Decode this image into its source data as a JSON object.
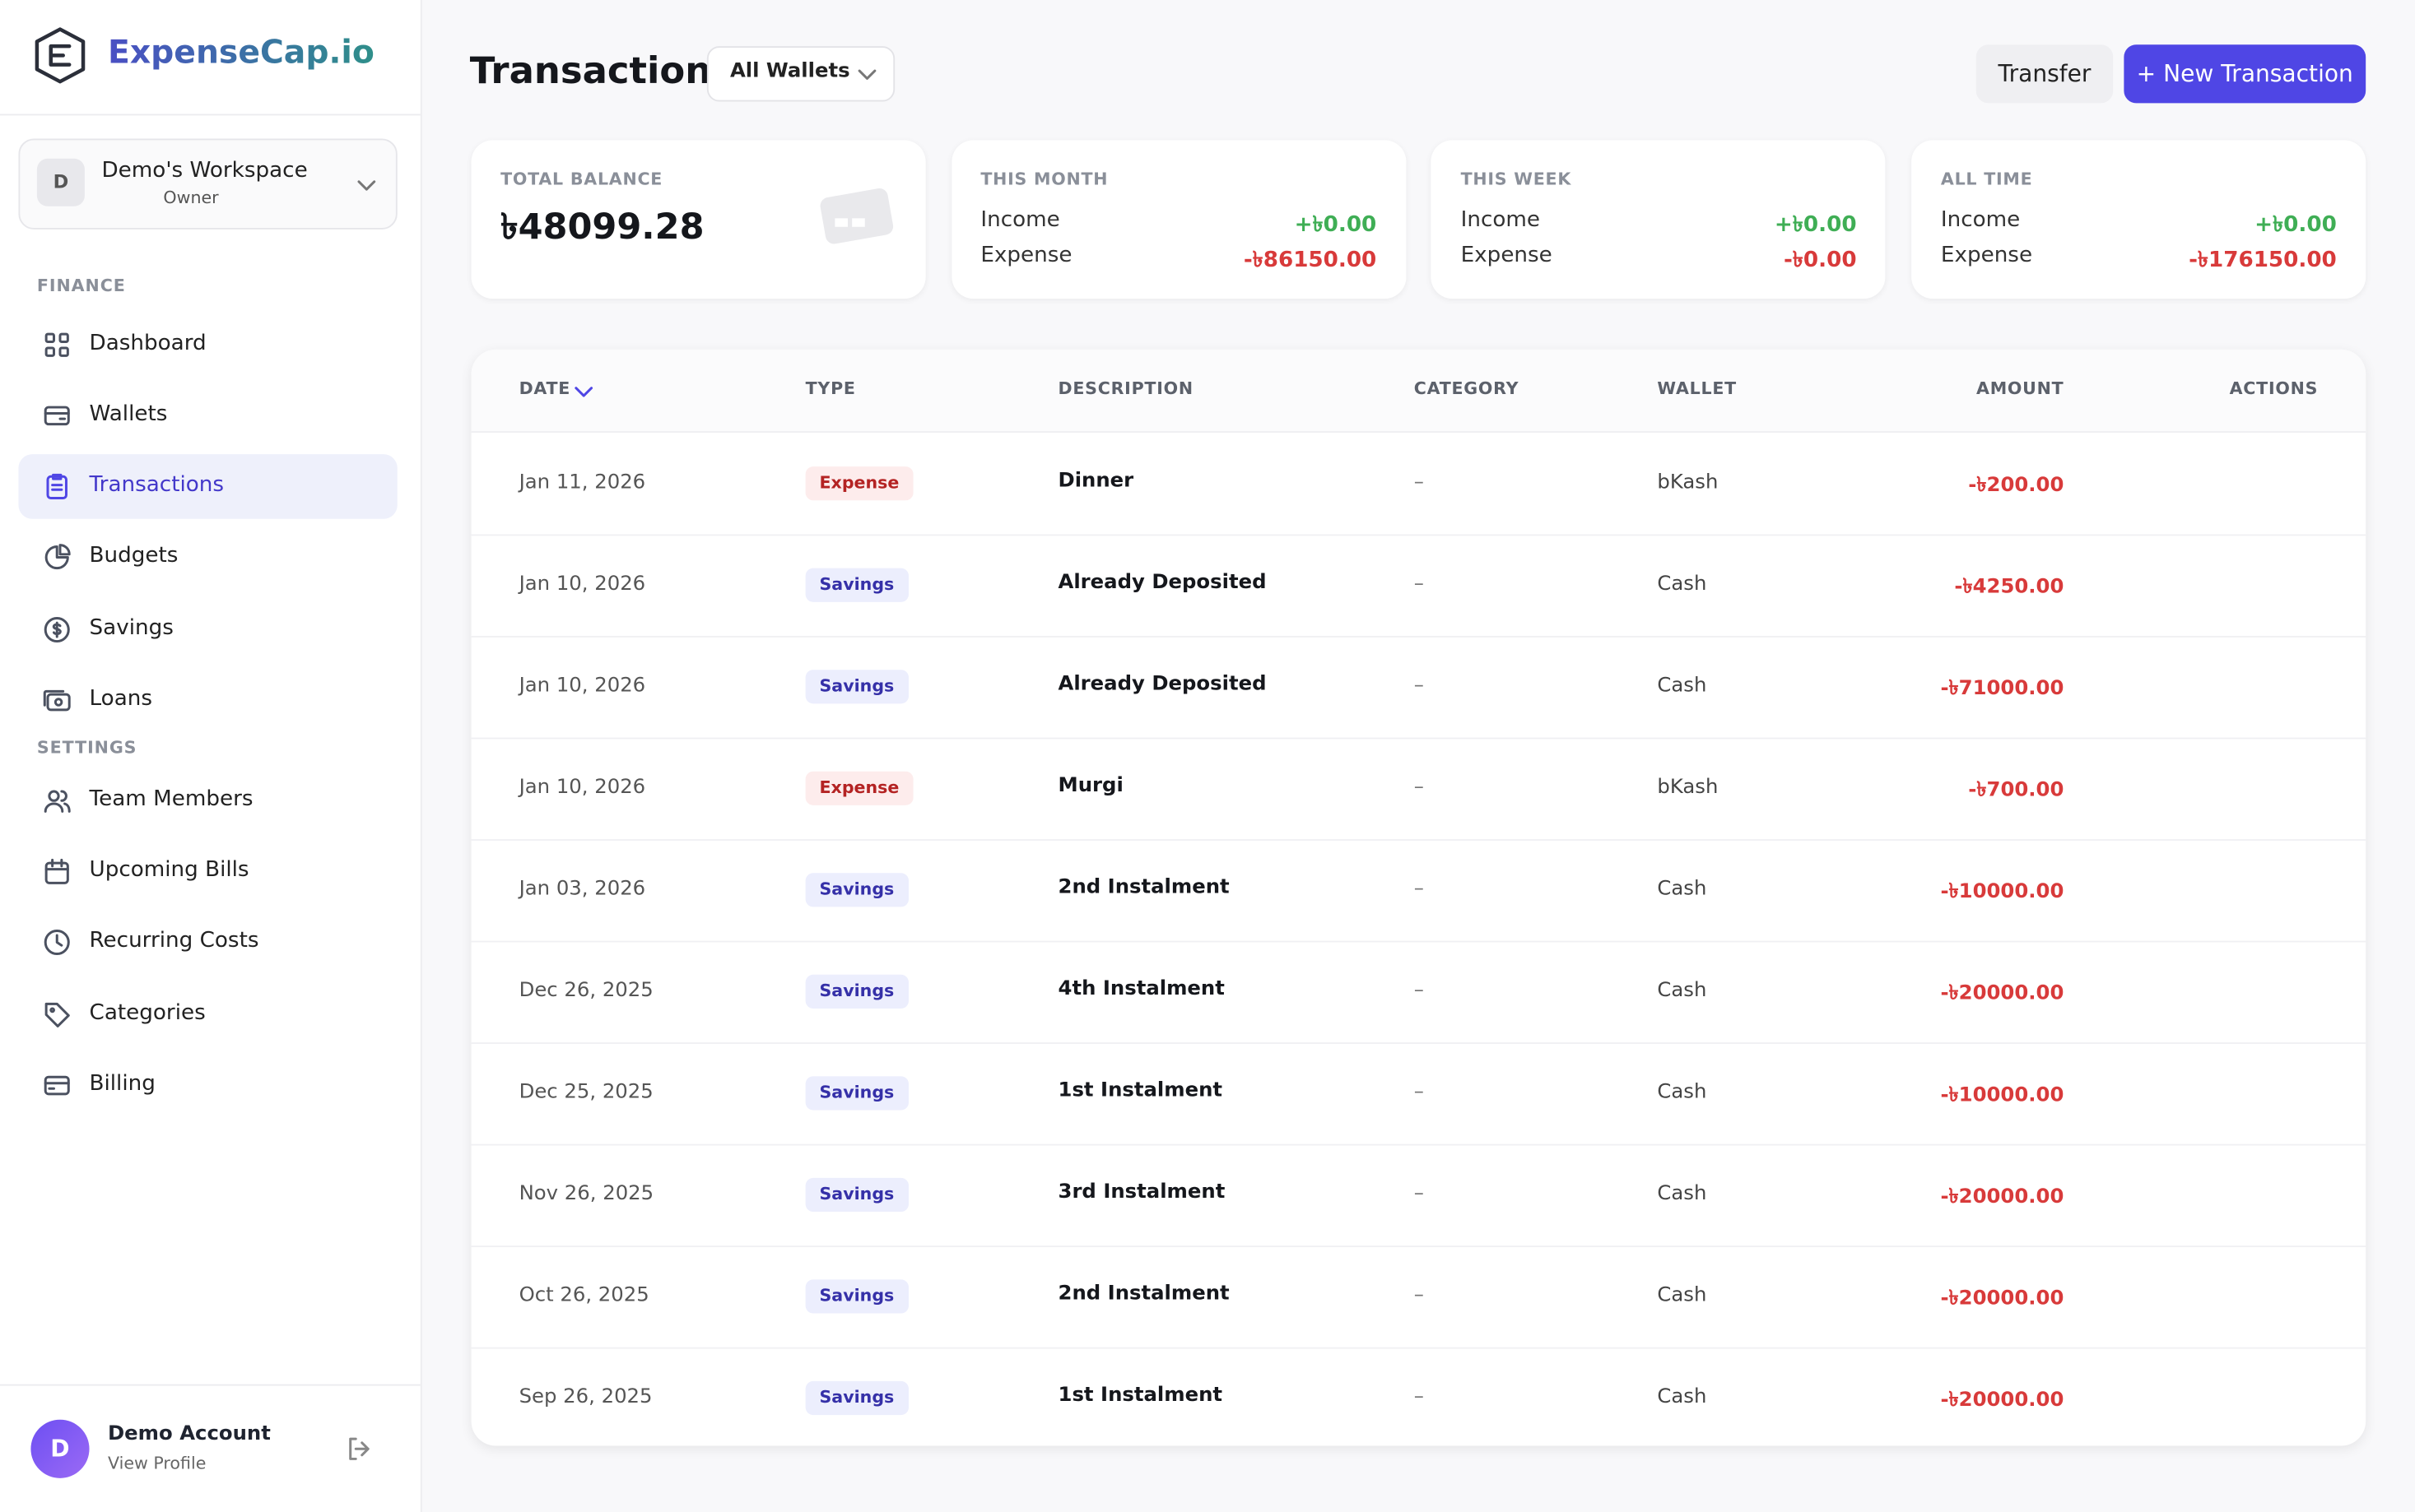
{
  "sidebar": {
    "logo": "ExpenseCap.io",
    "workspace": {
      "initial": "D",
      "name": "Demo's Workspace",
      "role": "Owner"
    },
    "sections": [
      {
        "title": "FINANCE",
        "items": [
          "Dashboard",
          "Wallets",
          "Transactions",
          "Budgets",
          "Savings",
          "Loans"
        ]
      },
      {
        "title": "SETTINGS",
        "items": [
          "Team Members",
          "Upcoming Bills",
          "Recurring Costs",
          "Categories",
          "Billing"
        ]
      }
    ],
    "account": {
      "initial": "D",
      "name": "Demo Account",
      "link": "View Profile"
    }
  },
  "header": {
    "title": "Transactions",
    "wallet_filter": "All Wallets",
    "transfer": "Transfer",
    "new": "+ New Transaction"
  },
  "cards": [
    {
      "title": "TOTAL BALANCE",
      "value": "৳48099.28"
    },
    {
      "title": "THIS MONTH",
      "income_label": "Income",
      "income": "+৳0.00",
      "expense_label": "Expense",
      "expense": "-৳86150.00"
    },
    {
      "title": "THIS WEEK",
      "income_label": "Income",
      "income": "+৳0.00",
      "expense_label": "Expense",
      "expense": "-৳0.00"
    },
    {
      "title": "ALL TIME",
      "income_label": "Income",
      "income": "+৳0.00",
      "expense_label": "Expense",
      "expense": "-৳176150.00"
    }
  ],
  "table": {
    "columns": [
      "DATE",
      "TYPE",
      "DESCRIPTION",
      "CATEGORY",
      "WALLET",
      "AMOUNT",
      "ACTIONS"
    ],
    "rows": [
      [
        "Jan 11, 2026",
        "Expense",
        "Dinner",
        "–",
        "bKash",
        "-৳200.00"
      ],
      [
        "Jan 10, 2026",
        "Savings",
        "Already Deposited",
        "–",
        "Cash",
        "-৳4250.00"
      ],
      [
        "Jan 10, 2026",
        "Savings",
        "Already Deposited",
        "–",
        "Cash",
        "-৳71000.00"
      ],
      [
        "Jan 10, 2026",
        "Expense",
        "Murgi",
        "–",
        "bKash",
        "-৳700.00"
      ],
      [
        "Jan 03, 2026",
        "Savings",
        "2nd Instalment",
        "–",
        "Cash",
        "-৳10000.00"
      ],
      [
        "Dec 26, 2025",
        "Savings",
        "4th Instalment",
        "–",
        "Cash",
        "-৳20000.00"
      ],
      [
        "Dec 25, 2025",
        "Savings",
        "1st Instalment",
        "–",
        "Cash",
        "-৳10000.00"
      ],
      [
        "Nov 26, 2025",
        "Savings",
        "3rd Instalment",
        "–",
        "Cash",
        "-৳20000.00"
      ],
      [
        "Oct 26, 2025",
        "Savings",
        "2nd Instalment",
        "–",
        "Cash",
        "-৳20000.00"
      ],
      [
        "Sep 26, 2025",
        "Savings",
        "1st Instalment",
        "–",
        "Cash",
        "-৳20000.00"
      ]
    ]
  }
}
